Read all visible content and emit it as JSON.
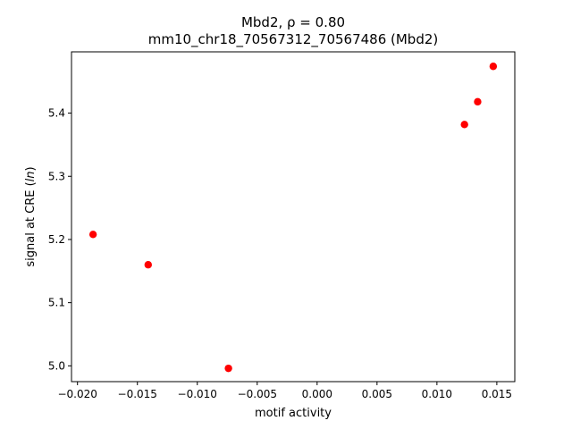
{
  "chart_data": {
    "type": "scatter",
    "title_line1": "Mbd2, ρ = 0.80",
    "title_line2": "mm10_chr18_70567312_70567486 (Mbd2)",
    "xlabel": "motif activity",
    "ylabel_prefix": "signal at CRE (",
    "ylabel_italic": "ln",
    "ylabel_suffix": ")",
    "xlim": [
      -0.0205,
      0.0165
    ],
    "ylim": [
      4.975,
      5.497
    ],
    "x_ticks": [
      {
        "value": -0.02,
        "label": "−0.020"
      },
      {
        "value": -0.015,
        "label": "−0.015"
      },
      {
        "value": -0.01,
        "label": "−0.010"
      },
      {
        "value": -0.005,
        "label": "−0.005"
      },
      {
        "value": 0.0,
        "label": "0.000"
      },
      {
        "value": 0.005,
        "label": "0.005"
      },
      {
        "value": 0.01,
        "label": "0.010"
      },
      {
        "value": 0.015,
        "label": "0.015"
      }
    ],
    "y_ticks": [
      {
        "value": 5.0,
        "label": "5.0"
      },
      {
        "value": 5.1,
        "label": "5.1"
      },
      {
        "value": 5.2,
        "label": "5.2"
      },
      {
        "value": 5.3,
        "label": "5.3"
      },
      {
        "value": 5.4,
        "label": "5.4"
      }
    ],
    "points": [
      {
        "x": -0.0187,
        "y": 5.208
      },
      {
        "x": -0.0141,
        "y": 5.16
      },
      {
        "x": -0.0074,
        "y": 4.996
      },
      {
        "x": 0.0123,
        "y": 5.382
      },
      {
        "x": 0.0134,
        "y": 5.418
      },
      {
        "x": 0.0147,
        "y": 5.474
      }
    ],
    "point_color": "#ff0000",
    "grid": false,
    "legend": "none"
  }
}
